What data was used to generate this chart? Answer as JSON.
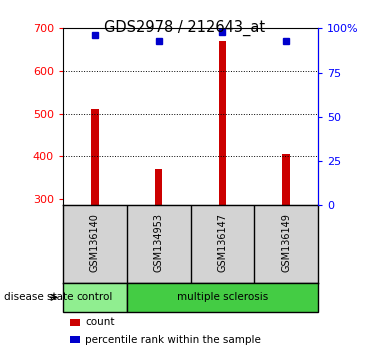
{
  "title": "GDS2978 / 212643_at",
  "samples": [
    "GSM136140",
    "GSM134953",
    "GSM136147",
    "GSM136149"
  ],
  "bar_values": [
    510,
    370,
    670,
    405
  ],
  "bar_base": 285,
  "percentile_values": [
    96,
    93,
    98,
    93
  ],
  "bar_color": "#cc0000",
  "percentile_color": "#0000cc",
  "ylim_left": [
    285,
    700
  ],
  "ylim_right": [
    0,
    100
  ],
  "yticks_left": [
    300,
    400,
    500,
    600,
    700
  ],
  "yticks_right": [
    0,
    25,
    50,
    75,
    100
  ],
  "ytick_labels_right": [
    "0",
    "25",
    "50",
    "75",
    "100%"
  ],
  "grid_values": [
    400,
    500,
    600
  ],
  "categories": [
    "control",
    "multiple sclerosis"
  ],
  "cat_colors": [
    "#90ee90",
    "#44cc44"
  ],
  "cat_edges": [
    0,
    1,
    4
  ],
  "disease_state_label": "disease state",
  "legend_count_label": "count",
  "legend_percentile_label": "percentile rank within the sample",
  "bar_width": 0.12,
  "fig_width": 3.7,
  "fig_height": 3.54,
  "dpi": 100
}
